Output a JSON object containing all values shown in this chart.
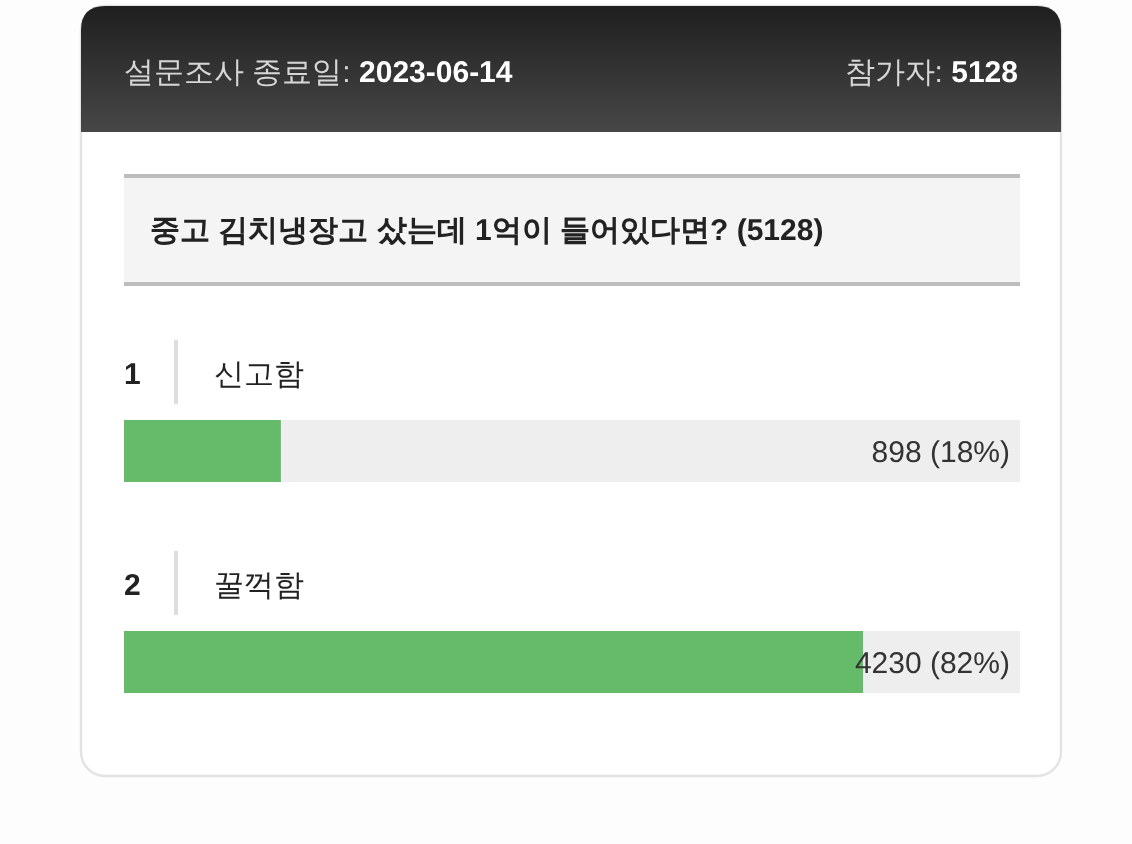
{
  "chart_data": {
    "type": "bar",
    "orientation": "horizontal",
    "title": "중고 김치냉장고 샀는데 1억이 들어있다면? (5128)",
    "subtitle": "설문조사 종료일: 2023-06-14",
    "annotations": [
      "참가자: 5128",
      {
        "text": "1",
        "y": "신고함"
      },
      {
        "text": "2",
        "y": "꿀꺽함"
      }
    ],
    "categories": [
      "신고함",
      "꿀꺽함"
    ],
    "values": [
      898,
      4230
    ],
    "color": "#66bb6a",
    "value_labels": [
      "898 (18%)",
      "4230 (82%)"
    ],
    "xlim": [
      0,
      5128
    ],
    "tick_labels": "y"
  }
}
